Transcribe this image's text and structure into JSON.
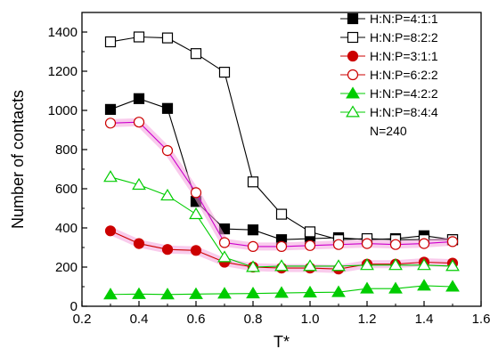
{
  "chart_data": {
    "type": "line",
    "xlabel": "T*",
    "ylabel": "Number of contacts",
    "xlim": [
      0.2,
      1.6
    ],
    "ylim": [
      0,
      1500
    ],
    "xticks": [
      "0.2",
      "0.4",
      "0.6",
      "0.8",
      "1.0",
      "1.2",
      "1.4",
      "1.6"
    ],
    "yticks": [
      "0",
      "200",
      "400",
      "600",
      "800",
      "1000",
      "1200",
      "1400"
    ],
    "grid": false,
    "legend_position": "top-right",
    "legend_note": "N=240",
    "x": [
      0.3,
      0.4,
      0.5,
      0.6,
      0.7,
      0.8,
      0.9,
      1.0,
      1.1,
      1.2,
      1.3,
      1.4,
      1.5
    ],
    "series": [
      {
        "name": "H:N:P=4:1:1",
        "color": "#000000",
        "marker": "square-filled",
        "values": [
          1005,
          1060,
          1010,
          535,
          395,
          390,
          340,
          345,
          350,
          340,
          345,
          360,
          340
        ]
      },
      {
        "name": "H:N:P=8:2:2",
        "color": "#000000",
        "marker": "square-open",
        "values": [
          1350,
          1375,
          1370,
          1290,
          1195,
          635,
          470,
          380,
          340,
          345,
          340,
          340,
          340
        ]
      },
      {
        "name": "H:N:P=3:1:1",
        "color": "#cc0000",
        "marker": "circle-filled",
        "values": [
          385,
          320,
          290,
          285,
          225,
          200,
          195,
          195,
          190,
          215,
          215,
          225,
          220
        ]
      },
      {
        "name": "H:N:P=6:2:2",
        "color": "#cc0000",
        "marker": "circle-open",
        "values": [
          935,
          940,
          795,
          580,
          325,
          305,
          305,
          310,
          315,
          320,
          315,
          320,
          330
        ]
      },
      {
        "name": "H:N:P=4:2:2",
        "color": "#00cc00",
        "marker": "triangle-filled",
        "values": [
          60,
          62,
          60,
          62,
          64,
          65,
          68,
          70,
          72,
          90,
          90,
          105,
          100
        ]
      },
      {
        "name": "H:N:P=8:4:4",
        "color": "#00cc00",
        "marker": "triangle-open",
        "values": [
          660,
          620,
          565,
          470,
          250,
          200,
          205,
          205,
          205,
          210,
          210,
          210,
          205
        ]
      }
    ]
  }
}
